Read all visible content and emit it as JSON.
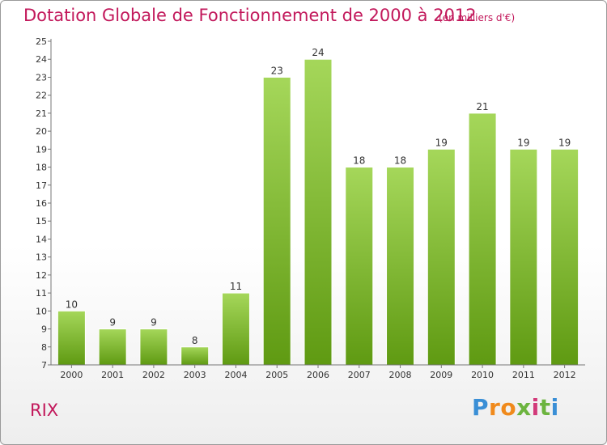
{
  "chart_data": {
    "type": "bar",
    "title": "Dotation Globale de Fonctionnement de 2000 à 2012",
    "subtitle": "(en milliers d'€)",
    "categories": [
      "2000",
      "2001",
      "2002",
      "2003",
      "2004",
      "2005",
      "2006",
      "2007",
      "2008",
      "2009",
      "2010",
      "2011",
      "2012"
    ],
    "values": [
      10,
      9,
      9,
      8,
      11,
      23,
      24,
      18,
      18,
      19,
      21,
      19,
      19
    ],
    "ylim": [
      7,
      25
    ],
    "yticks": [
      7,
      8,
      9,
      10,
      11,
      12,
      13,
      14,
      15,
      16,
      17,
      18,
      19,
      20,
      21,
      22,
      23,
      24,
      25
    ],
    "xlabel": "",
    "ylabel": "",
    "grid": false,
    "bar_color_top": "#a5d75a",
    "bar_color_bottom": "#5f9a12"
  },
  "commune": "RIX",
  "logo": {
    "letters": [
      "P",
      "r",
      "o",
      "x",
      "i",
      "t",
      "i"
    ],
    "colors": [
      "#3a8fd6",
      "#f08a1c",
      "#f08a1c",
      "#6cb43f",
      "#d23a7a",
      "#6cb43f",
      "#3a8fd6"
    ]
  }
}
